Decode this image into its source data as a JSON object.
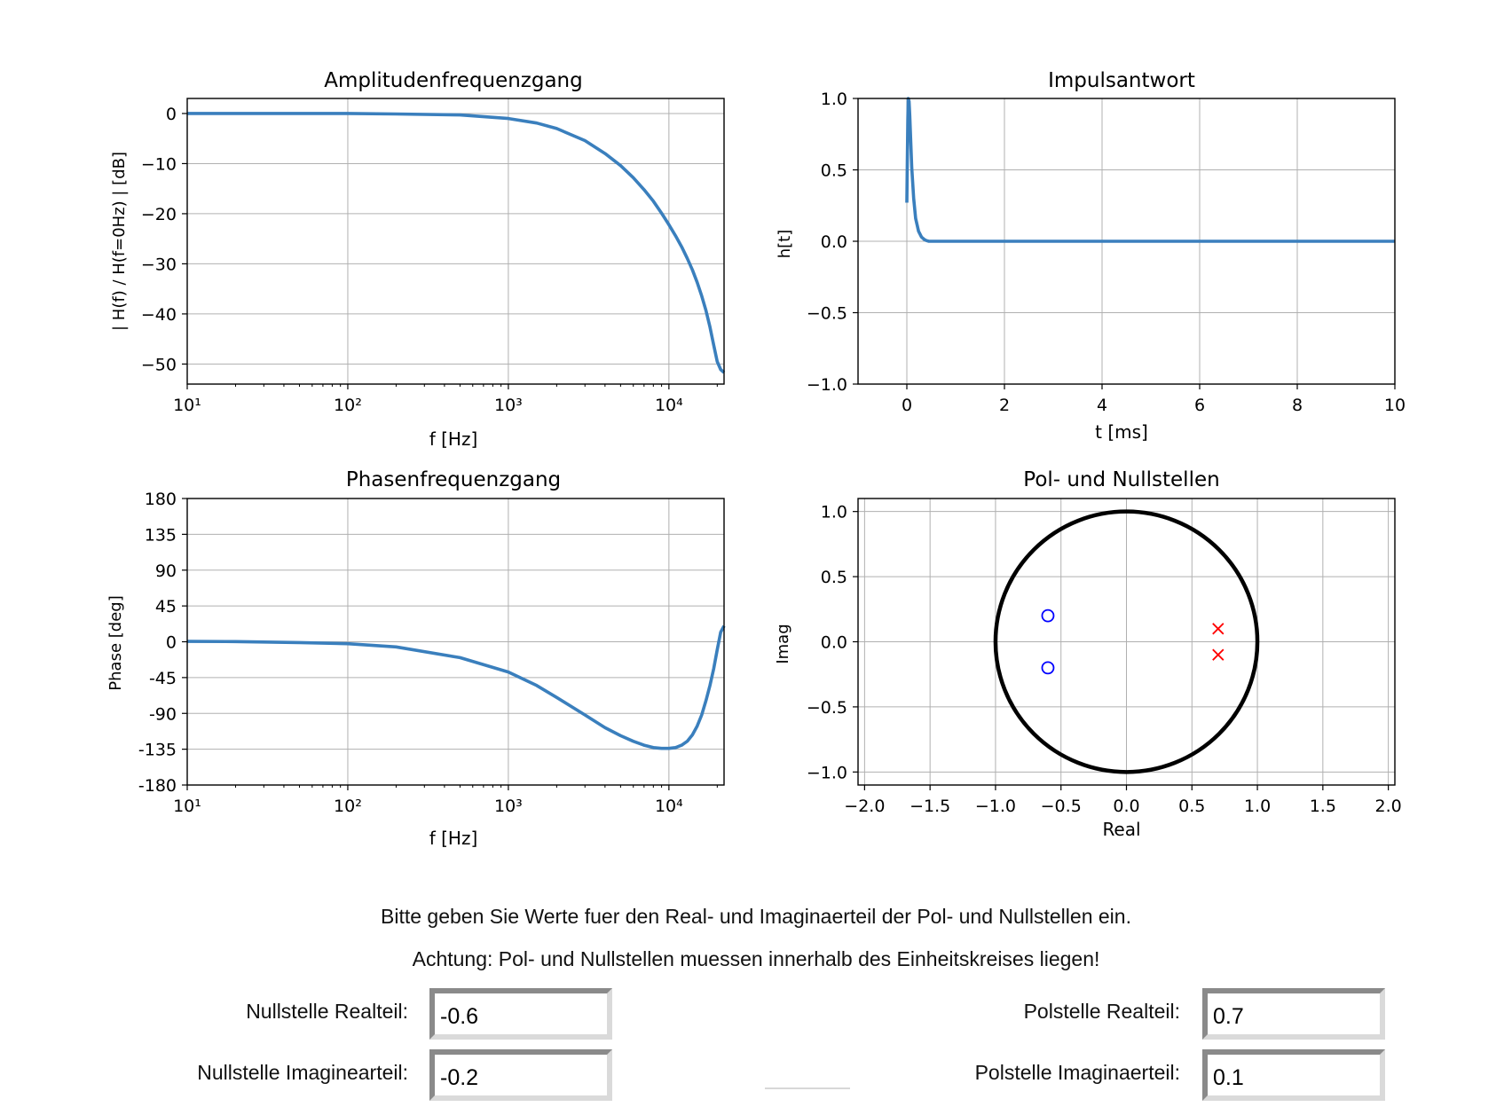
{
  "charts": {
    "amplitude": {
      "title": "Amplitudenfrequenzgang",
      "xlabel": "f [Hz]",
      "ylabel": "| H(f) / H(f=0Hz) | [dB]",
      "yticks": [
        "0",
        "−10",
        "−20",
        "−30",
        "−40",
        "−50"
      ],
      "xticks": [
        "10¹",
        "10²",
        "10³",
        "10⁴"
      ]
    },
    "impulse": {
      "title": "Impulsantwort",
      "xlabel": "t [ms]",
      "ylabel": "h[t]",
      "yticks": [
        "1.0",
        "0.5",
        "0.0",
        "−0.5",
        "−1.0"
      ],
      "xticks": [
        "0",
        "2",
        "4",
        "6",
        "8",
        "10"
      ]
    },
    "phase": {
      "title": "Phasenfrequenzgang",
      "xlabel": "f [Hz]",
      "ylabel": "Phase [deg]",
      "yticks": [
        "180",
        "135",
        "90",
        "45",
        "0",
        "-45",
        "-90",
        "-135",
        "-180"
      ],
      "xticks": [
        "10¹",
        "10²",
        "10³",
        "10⁴"
      ]
    },
    "polezero": {
      "title": "Pol- und Nullstellen",
      "xlabel": "Real",
      "ylabel": "Imag",
      "yticks": [
        "1.0",
        "0.5",
        "0.0",
        "−0.5",
        "−1.0"
      ],
      "xticks": [
        "−2.0",
        "−1.5",
        "−1.0",
        "−0.5",
        "0.0",
        "0.5",
        "1.0",
        "1.5",
        "2.0"
      ]
    }
  },
  "chart_data": [
    {
      "type": "line",
      "title": "Amplitudenfrequenzgang",
      "xlabel": "f [Hz]",
      "ylabel": "| H(f) / H(f=0Hz) | [dB]",
      "xscale": "log",
      "xlim": [
        10,
        22050
      ],
      "ylim": [
        -54,
        3
      ],
      "grid": true,
      "color": "#3a7fbd",
      "x": [
        10,
        20,
        50,
        100,
        200,
        500,
        1000,
        1500,
        2000,
        3000,
        4000,
        5000,
        6000,
        7000,
        8000,
        9000,
        10000,
        11000,
        12000,
        13000,
        14000,
        15000,
        16000,
        17000,
        18000,
        19000,
        20000,
        21000,
        22050
      ],
      "y": [
        0.0,
        0.0,
        0.0,
        0.0,
        -0.1,
        -0.3,
        -1.0,
        -1.9,
        -3.0,
        -5.4,
        -8.0,
        -10.4,
        -12.8,
        -15.2,
        -17.5,
        -19.9,
        -22.2,
        -24.4,
        -26.6,
        -28.9,
        -31.2,
        -33.7,
        -36.4,
        -39.3,
        -42.6,
        -46.2,
        -49.5,
        -51.1,
        -51.7
      ]
    },
    {
      "type": "line",
      "title": "Impulsantwort",
      "xlabel": "t [ms]",
      "ylabel": "h[t]",
      "xlim": [
        -1,
        10
      ],
      "ylim": [
        -1.0,
        1.0
      ],
      "grid": true,
      "color": "#3a7fbd",
      "x": [
        0,
        0.01,
        0.02,
        0.03,
        0.045,
        0.06,
        0.08,
        0.1,
        0.14,
        0.18,
        0.24,
        0.3,
        0.36,
        0.4,
        0.45,
        0.6,
        1,
        2,
        4,
        6,
        8,
        10
      ],
      "y": [
        0.27,
        0.55,
        0.85,
        1.0,
        0.98,
        0.88,
        0.7,
        0.52,
        0.3,
        0.16,
        0.07,
        0.03,
        0.012,
        0.005,
        0.0,
        0.0,
        0.0,
        0.0,
        0.0,
        0.0,
        0.0,
        0.0
      ]
    },
    {
      "type": "line",
      "title": "Phasenfrequenzgang",
      "xlabel": "f [Hz]",
      "ylabel": "Phase [deg]",
      "xscale": "log",
      "xlim": [
        10,
        22050
      ],
      "ylim": [
        -180,
        180
      ],
      "grid": true,
      "color": "#3a7fbd",
      "x": [
        10,
        20,
        50,
        100,
        200,
        500,
        1000,
        1500,
        2000,
        3000,
        4000,
        5000,
        6000,
        7000,
        8000,
        9000,
        10000,
        11000,
        12000,
        13000,
        14000,
        15000,
        16000,
        17000,
        18000,
        19000,
        20000,
        21000,
        22050
      ],
      "y": [
        0.5,
        0.2,
        -1.0,
        -2.5,
        -6.5,
        -20.0,
        -38.0,
        -55.0,
        -70.0,
        -92.0,
        -108.0,
        -118.0,
        -125.0,
        -130.0,
        -133.0,
        -134.0,
        -134.0,
        -133.0,
        -130.0,
        -125.0,
        -117.0,
        -106.0,
        -92.0,
        -74.0,
        -55.0,
        -34.0,
        -10.0,
        12.0,
        20.0
      ]
    },
    {
      "type": "scatter",
      "title": "Pol- und Nullstellen",
      "xlabel": "Real",
      "ylabel": "Imag",
      "xlim": [
        -2.05,
        2.05
      ],
      "ylim": [
        -1.1,
        1.1
      ],
      "grid": true,
      "unit_circle": true,
      "series": [
        {
          "marker": "o",
          "color": "#0000ff",
          "x": [
            -0.6,
            -0.6
          ],
          "y": [
            0.2,
            -0.2
          ]
        },
        {
          "marker": "x",
          "color": "#ff0000",
          "x": [
            0.7,
            0.7
          ],
          "y": [
            0.1,
            -0.1
          ]
        }
      ]
    }
  ],
  "instructions": {
    "line1": "Bitte geben Sie Werte fuer den Real- und Imaginaerteil der Pol- und Nullstellen ein.",
    "line2": "Achtung: Pol- und Nullstellen muessen innerhalb des Einheitskreises liegen!"
  },
  "form": {
    "zero_real_label": "Nullstelle Realteil:",
    "zero_real_value": "-0.6",
    "zero_imag_label": "Nullstelle Imaginearteil:",
    "zero_imag_value": "-0.2",
    "pole_real_label": "Polstelle Realteil:",
    "pole_real_value": "0.7",
    "pole_imag_label": "Polstelle Imaginaerteil:",
    "pole_imag_value": "0.1"
  }
}
